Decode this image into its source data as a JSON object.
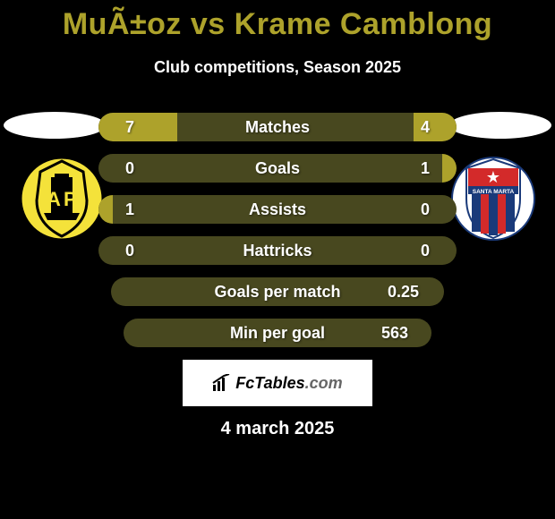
{
  "title": "MuÃ±oz vs Krame Camblong",
  "subtitle": "Club competitions, Season 2025",
  "date_text": "4 march 2025",
  "brand": {
    "text_main": "FcTables",
    "text_suffix": ".com"
  },
  "accent_fill": "#ada22b",
  "track_fill": "#48481f",
  "badges": {
    "left": {
      "bg_color": "#f4e23a",
      "letters": "AP",
      "accent_color": "#000000"
    },
    "right": {
      "bg_color": "#ffffff",
      "top_text": "★",
      "bottom_text": "SANTA MARTA",
      "stripe_colors": [
        "#1a3a7a",
        "#d32a2a"
      ]
    }
  },
  "stats": [
    {
      "label": "Matches",
      "left_val": "7",
      "right_val": "4",
      "left_pct": 22,
      "right_pct": 12,
      "indent": 0
    },
    {
      "label": "Goals",
      "left_val": "0",
      "right_val": "1",
      "left_pct": 0,
      "right_pct": 4,
      "indent": 0
    },
    {
      "label": "Assists",
      "left_val": "1",
      "right_val": "0",
      "left_pct": 4,
      "right_pct": 0,
      "indent": 0
    },
    {
      "label": "Hattricks",
      "left_val": "0",
      "right_val": "0",
      "left_pct": 0,
      "right_pct": 0,
      "indent": 0
    },
    {
      "label": "Goals per match",
      "left_val": "",
      "right_val": "0.25",
      "left_pct": 0,
      "right_pct": 0,
      "indent": 1
    },
    {
      "label": "Min per goal",
      "left_val": "",
      "right_val": "563",
      "left_pct": 0,
      "right_pct": 0,
      "indent": 2
    }
  ]
}
